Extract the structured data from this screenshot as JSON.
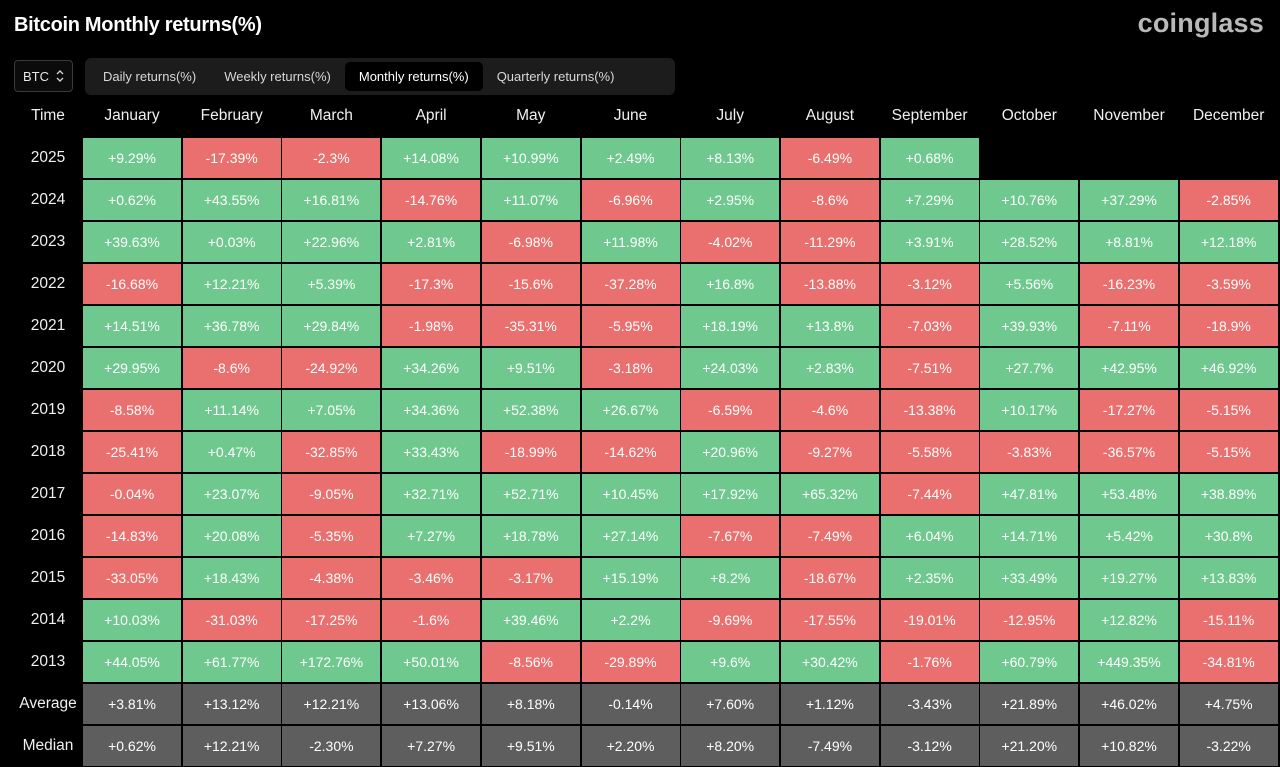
{
  "header": {
    "title": "Bitcoin Monthly returns(%)",
    "logo": "coinglass"
  },
  "asset_select": {
    "value": "BTC",
    "icon": "chevron-updown-icon"
  },
  "tabs": [
    {
      "label": "Daily returns(%)",
      "active": false
    },
    {
      "label": "Weekly returns(%)",
      "active": false
    },
    {
      "label": "Monthly returns(%)",
      "active": true
    },
    {
      "label": "Quarterly returns(%)",
      "active": false
    }
  ],
  "colors": {
    "positive": "#6fc98e",
    "negative": "#e9706e",
    "summary": "#5e5e5e",
    "background": "#000000"
  },
  "chart_data": {
    "type": "heatmap",
    "corner_label": "Time",
    "columns": [
      "January",
      "February",
      "March",
      "April",
      "May",
      "June",
      "July",
      "August",
      "September",
      "October",
      "November",
      "December"
    ],
    "rows": [
      {
        "label": "2025",
        "values": [
          "+9.29%",
          "-17.39%",
          "-2.3%",
          "+14.08%",
          "+10.99%",
          "+2.49%",
          "+8.13%",
          "-6.49%",
          "+0.68%",
          null,
          null,
          null
        ]
      },
      {
        "label": "2024",
        "values": [
          "+0.62%",
          "+43.55%",
          "+16.81%",
          "-14.76%",
          "+11.07%",
          "-6.96%",
          "+2.95%",
          "-8.6%",
          "+7.29%",
          "+10.76%",
          "+37.29%",
          "-2.85%"
        ]
      },
      {
        "label": "2023",
        "values": [
          "+39.63%",
          "+0.03%",
          "+22.96%",
          "+2.81%",
          "-6.98%",
          "+11.98%",
          "-4.02%",
          "-11.29%",
          "+3.91%",
          "+28.52%",
          "+8.81%",
          "+12.18%"
        ]
      },
      {
        "label": "2022",
        "values": [
          "-16.68%",
          "+12.21%",
          "+5.39%",
          "-17.3%",
          "-15.6%",
          "-37.28%",
          "+16.8%",
          "-13.88%",
          "-3.12%",
          "+5.56%",
          "-16.23%",
          "-3.59%"
        ]
      },
      {
        "label": "2021",
        "values": [
          "+14.51%",
          "+36.78%",
          "+29.84%",
          "-1.98%",
          "-35.31%",
          "-5.95%",
          "+18.19%",
          "+13.8%",
          "-7.03%",
          "+39.93%",
          "-7.11%",
          "-18.9%"
        ]
      },
      {
        "label": "2020",
        "values": [
          "+29.95%",
          "-8.6%",
          "-24.92%",
          "+34.26%",
          "+9.51%",
          "-3.18%",
          "+24.03%",
          "+2.83%",
          "-7.51%",
          "+27.7%",
          "+42.95%",
          "+46.92%"
        ]
      },
      {
        "label": "2019",
        "values": [
          "-8.58%",
          "+11.14%",
          "+7.05%",
          "+34.36%",
          "+52.38%",
          "+26.67%",
          "-6.59%",
          "-4.6%",
          "-13.38%",
          "+10.17%",
          "-17.27%",
          "-5.15%"
        ]
      },
      {
        "label": "2018",
        "values": [
          "-25.41%",
          "+0.47%",
          "-32.85%",
          "+33.43%",
          "-18.99%",
          "-14.62%",
          "+20.96%",
          "-9.27%",
          "-5.58%",
          "-3.83%",
          "-36.57%",
          "-5.15%"
        ]
      },
      {
        "label": "2017",
        "values": [
          "-0.04%",
          "+23.07%",
          "-9.05%",
          "+32.71%",
          "+52.71%",
          "+10.45%",
          "+17.92%",
          "+65.32%",
          "-7.44%",
          "+47.81%",
          "+53.48%",
          "+38.89%"
        ]
      },
      {
        "label": "2016",
        "values": [
          "-14.83%",
          "+20.08%",
          "-5.35%",
          "+7.27%",
          "+18.78%",
          "+27.14%",
          "-7.67%",
          "-7.49%",
          "+6.04%",
          "+14.71%",
          "+5.42%",
          "+30.8%"
        ]
      },
      {
        "label": "2015",
        "values": [
          "-33.05%",
          "+18.43%",
          "-4.38%",
          "-3.46%",
          "-3.17%",
          "+15.19%",
          "+8.2%",
          "-18.67%",
          "+2.35%",
          "+33.49%",
          "+19.27%",
          "+13.83%"
        ]
      },
      {
        "label": "2014",
        "values": [
          "+10.03%",
          "-31.03%",
          "-17.25%",
          "-1.6%",
          "+39.46%",
          "+2.2%",
          "-9.69%",
          "-17.55%",
          "-19.01%",
          "-12.95%",
          "+12.82%",
          "-15.11%"
        ]
      },
      {
        "label": "2013",
        "values": [
          "+44.05%",
          "+61.77%",
          "+172.76%",
          "+50.01%",
          "-8.56%",
          "-29.89%",
          "+9.6%",
          "+30.42%",
          "-1.76%",
          "+60.79%",
          "+449.35%",
          "-34.81%"
        ]
      }
    ],
    "summary_rows": [
      {
        "label": "Average",
        "values": [
          "+3.81%",
          "+13.12%",
          "+12.21%",
          "+13.06%",
          "+8.18%",
          "-0.14%",
          "+7.60%",
          "+1.12%",
          "-3.43%",
          "+21.89%",
          "+46.02%",
          "+4.75%"
        ]
      },
      {
        "label": "Median",
        "values": [
          "+0.62%",
          "+12.21%",
          "-2.30%",
          "+7.27%",
          "+9.51%",
          "+2.20%",
          "+8.20%",
          "-7.49%",
          "-3.12%",
          "+21.20%",
          "+10.82%",
          "-3.22%"
        ]
      }
    ]
  }
}
